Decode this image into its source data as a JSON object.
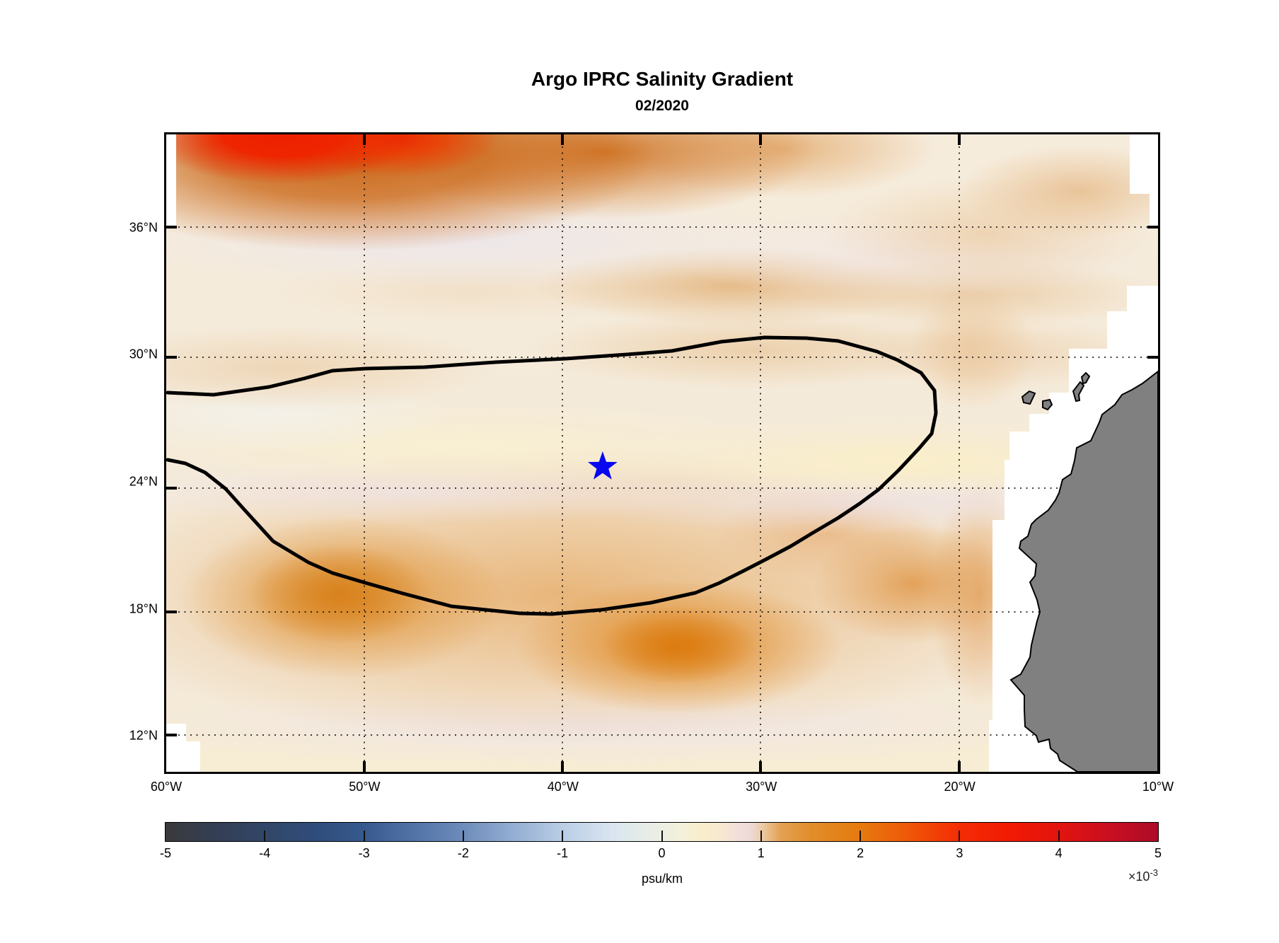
{
  "figure": {
    "title": "Argo IPRC Salinity Gradient",
    "subtitle": "02/2020"
  },
  "chart_data": {
    "type": "heatmap",
    "title": "Argo IPRC Salinity Gradient",
    "subtitle": "02/2020",
    "x_axis": {
      "tick_labels": [
        "60°W",
        "50°W",
        "40°W",
        "30°W",
        "20°W",
        "10°W"
      ],
      "lon_values": [
        -60,
        -50,
        -40,
        -30,
        -20,
        -10
      ],
      "range": [
        -60,
        -10
      ]
    },
    "y_axis": {
      "tick_labels": [
        "36°N",
        "30°N",
        "24°N",
        "18°N",
        "12°N"
      ],
      "lat_values": [
        36,
        30,
        24,
        18,
        12
      ],
      "range": [
        10.3,
        40.4
      ]
    },
    "grid": {
      "style": "dotted",
      "color": "#000000"
    },
    "colorbar": {
      "label": "psu/km",
      "multiplier": {
        "base": "×10",
        "exponent": "-3"
      },
      "tick_labels": [
        "-5",
        "-4",
        "-3",
        "-2",
        "-1",
        "0",
        "1",
        "2",
        "3",
        "4",
        "5"
      ],
      "tick_values": [
        -5,
        -4,
        -3,
        -2,
        -1,
        0,
        1,
        2,
        3,
        4,
        5
      ],
      "range": [
        -0.005,
        0.005
      ],
      "stops": [
        {
          "p": 0.0,
          "c": "#3a3a3c"
        },
        {
          "p": 0.05,
          "c": "#343e54"
        },
        {
          "p": 0.1,
          "c": "#314667"
        },
        {
          "p": 0.15,
          "c": "#2f4d7b"
        },
        {
          "p": 0.2,
          "c": "#37598e"
        },
        {
          "p": 0.25,
          "c": "#5173a6"
        },
        {
          "p": 0.3,
          "c": "#6e8cbb"
        },
        {
          "p": 0.35,
          "c": "#93aed2"
        },
        {
          "p": 0.4,
          "c": "#b9cde5"
        },
        {
          "p": 0.45,
          "c": "#d9e5f0"
        },
        {
          "p": 0.475,
          "c": "#e3ebe9"
        },
        {
          "p": 0.5,
          "c": "#edefe2"
        },
        {
          "p": 0.52,
          "c": "#f4f0da"
        },
        {
          "p": 0.54,
          "c": "#f8eecb"
        },
        {
          "p": 0.56,
          "c": "#f7e8d0"
        },
        {
          "p": 0.575,
          "c": "#f2dfda"
        },
        {
          "p": 0.59,
          "c": "#eed9d8"
        },
        {
          "p": 0.6,
          "c": "#eccdaa"
        },
        {
          "p": 0.62,
          "c": "#e3a152"
        },
        {
          "p": 0.65,
          "c": "#e18d2b"
        },
        {
          "p": 0.7,
          "c": "#e67a0e"
        },
        {
          "p": 0.75,
          "c": "#ef5608"
        },
        {
          "p": 0.8,
          "c": "#f42c05"
        },
        {
          "p": 0.85,
          "c": "#f11a04"
        },
        {
          "p": 0.9,
          "c": "#e2140f"
        },
        {
          "p": 0.95,
          "c": "#c90f20"
        },
        {
          "p": 1.0,
          "c": "#ad0b28"
        }
      ]
    },
    "marker": {
      "shape": "star",
      "color": "#0808f0",
      "lon": -38,
      "lat": 24.7
    },
    "contour": {
      "color": "#000000",
      "style": "solid",
      "description": "single closed contour enclosing the central low-gradient region between ~18°N and ~30°N, touching the western boundary"
    },
    "land": {
      "color": "#808080",
      "outline": "#000000",
      "region": "Northwest Africa with Canary Islands"
    },
    "masked_color": "#ffffff",
    "features": [
      {
        "region": "northwest corner near 55°W 39°N",
        "value_1e-3_psu_per_km": 4.5
      },
      {
        "region": "band 15°N–21°N across basin",
        "value_1e-3_psu_per_km": 1.6
      },
      {
        "region": "central gyre 24°N–28°N",
        "value_1e-3_psu_per_km": 0.4
      }
    ]
  }
}
